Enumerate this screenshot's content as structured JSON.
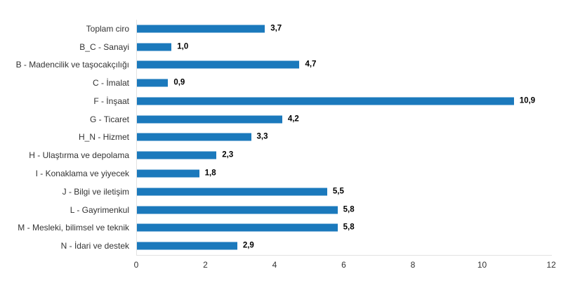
{
  "chart_data": {
    "type": "bar",
    "orientation": "horizontal",
    "title": "",
    "xlabel": "",
    "ylabel": "",
    "categories": [
      "Toplam ciro",
      "B_C - Sanayi",
      "B - Madencilik ve taşocakçılığı",
      "C - İmalat",
      "F - İnşaat",
      "G - Ticaret",
      "H_N - Hizmet",
      "H - Ulaştırma ve depolama",
      "I - Konaklama ve yiyecek",
      "J - Bilgi ve iletişim",
      "L - Gayrimenkul",
      "M - Mesleki, bilimsel ve teknik",
      "N - İdari ve destek"
    ],
    "values": [
      3.7,
      1.0,
      4.7,
      0.9,
      10.9,
      4.2,
      3.3,
      2.3,
      1.8,
      5.5,
      5.8,
      5.8,
      2.9
    ],
    "value_labels": [
      "3,7",
      "1,0",
      "4,7",
      "0,9",
      "10,9",
      "4,2",
      "3,3",
      "2,3",
      "1,8",
      "5,5",
      "5,8",
      "5,8",
      "2,9"
    ],
    "xlim": [
      0,
      12
    ],
    "x_ticks": [
      "0",
      "2",
      "4",
      "6",
      "8",
      "10",
      "12"
    ],
    "grid": false,
    "legend": false,
    "colors": {
      "bar": "#1b79bc",
      "axis_line": "#e2e2e2",
      "category_label": "#333333",
      "value_label": "#000000",
      "tick_label": "#333333",
      "background": "#ffffff"
    }
  }
}
